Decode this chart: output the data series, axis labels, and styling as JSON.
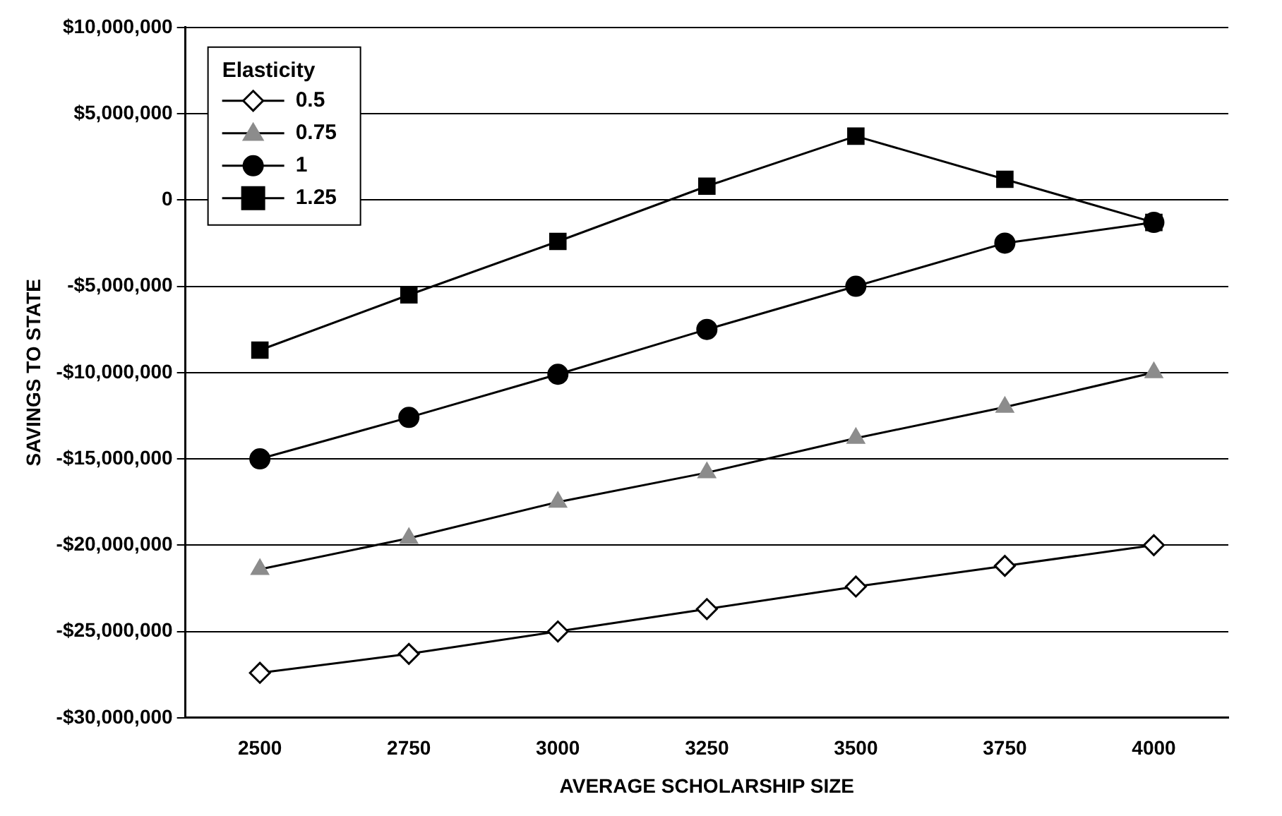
{
  "chart_data": {
    "type": "line",
    "xlabel": "AVERAGE SCHOLARSHIP SIZE",
    "ylabel": "SAVINGS TO STATE",
    "legend_title": "Elasticity",
    "legend": "top left",
    "categories": [
      "2500",
      "2750",
      "3000",
      "3250",
      "3500",
      "3750",
      "4000"
    ],
    "series": [
      {
        "name": "0.5",
        "color": "#000000",
        "marker": "diamond",
        "values": [
          -27400000,
          -26300000,
          -25000000,
          -23700000,
          -22400000,
          -21200000,
          -20000000
        ]
      },
      {
        "name": "0.75",
        "color": "#8c8c8c",
        "marker": "triangle",
        "values": [
          -21400000,
          -19600000,
          -17500000,
          -15800000,
          -13800000,
          -12000000,
          -10000000
        ]
      },
      {
        "name": "1",
        "color": "#000000",
        "marker": "circle",
        "values": [
          -15000000,
          -12600000,
          -10100000,
          -7500000,
          -5000000,
          -2500000,
          -1300000
        ]
      },
      {
        "name": "1.25",
        "color": "#000000",
        "marker": "square",
        "values": [
          -8700000,
          -5500000,
          -2400000,
          800000,
          3700000,
          1200000,
          -1300000
        ]
      }
    ],
    "ylim": [
      -30000000,
      10000000
    ],
    "yticks": [
      {
        "value": -30000000,
        "label": "-$30,000,000"
      },
      {
        "value": -25000000,
        "label": "-$25,000,000"
      },
      {
        "value": -20000000,
        "label": "-$20,000,000"
      },
      {
        "value": -15000000,
        "label": "-$15,000,000"
      },
      {
        "value": -10000000,
        "label": "-$10,000,000"
      },
      {
        "value": -5000000,
        "label": "-$5,000,000"
      },
      0,
      {
        "value": 5000000,
        "label": "$5,000,000"
      },
      {
        "value": 10000000,
        "label": "$10,000,000"
      }
    ],
    "grid": "y"
  }
}
